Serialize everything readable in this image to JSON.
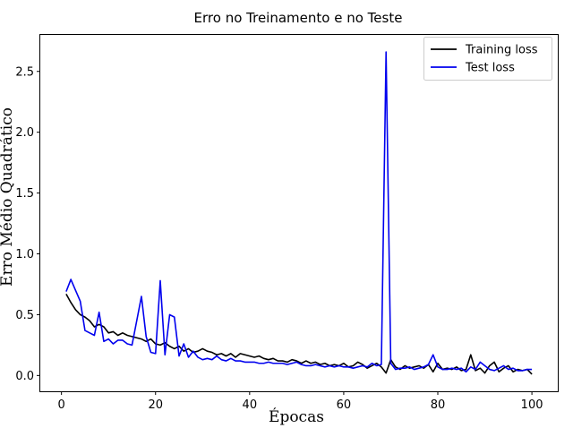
{
  "chart_data": {
    "type": "line",
    "title": "Erro no Treinamento e no Teste",
    "xlabel": "Épocas",
    "ylabel": "Erro Médio Quadrático",
    "xlim": [
      -4.5,
      105.5
    ],
    "ylim": [
      -0.13,
      2.8
    ],
    "xticks": [
      0,
      20,
      40,
      60,
      80,
      100
    ],
    "xtick_labels": [
      "0",
      "20",
      "40",
      "60",
      "80",
      "100"
    ],
    "yticks": [
      0.0,
      0.5,
      1.0,
      1.5,
      2.0,
      2.5
    ],
    "ytick_labels": [
      "0.0",
      "0.5",
      "1.0",
      "1.5",
      "2.0",
      "2.5"
    ],
    "legend_position": "top-right",
    "grid": false,
    "x": [
      1,
      2,
      3,
      4,
      5,
      6,
      7,
      8,
      9,
      10,
      11,
      12,
      13,
      14,
      15,
      16,
      17,
      18,
      19,
      20,
      21,
      22,
      23,
      24,
      25,
      26,
      27,
      28,
      29,
      30,
      31,
      32,
      33,
      34,
      35,
      36,
      37,
      38,
      39,
      40,
      41,
      42,
      43,
      44,
      45,
      46,
      47,
      48,
      49,
      50,
      51,
      52,
      53,
      54,
      55,
      56,
      57,
      58,
      59,
      60,
      61,
      62,
      63,
      64,
      65,
      66,
      67,
      68,
      69,
      70,
      71,
      72,
      73,
      74,
      75,
      76,
      77,
      78,
      79,
      80,
      81,
      82,
      83,
      84,
      85,
      86,
      87,
      88,
      89,
      90,
      91,
      92,
      93,
      94,
      95,
      96,
      97,
      98,
      99,
      100
    ],
    "series": [
      {
        "name": "Training loss",
        "color": "#000000",
        "values": [
          0.67,
          0.6,
          0.54,
          0.5,
          0.48,
          0.45,
          0.4,
          0.42,
          0.4,
          0.35,
          0.36,
          0.33,
          0.35,
          0.33,
          0.32,
          0.31,
          0.3,
          0.28,
          0.3,
          0.26,
          0.25,
          0.27,
          0.24,
          0.22,
          0.24,
          0.2,
          0.22,
          0.19,
          0.2,
          0.22,
          0.2,
          0.19,
          0.17,
          0.18,
          0.16,
          0.18,
          0.15,
          0.18,
          0.17,
          0.16,
          0.15,
          0.16,
          0.14,
          0.13,
          0.14,
          0.12,
          0.12,
          0.11,
          0.13,
          0.12,
          0.1,
          0.12,
          0.1,
          0.11,
          0.09,
          0.1,
          0.08,
          0.09,
          0.08,
          0.1,
          0.07,
          0.08,
          0.11,
          0.09,
          0.06,
          0.08,
          0.1,
          0.07,
          0.02,
          0.13,
          0.07,
          0.05,
          0.08,
          0.06,
          0.07,
          0.08,
          0.06,
          0.09,
          0.03,
          0.1,
          0.05,
          0.06,
          0.05,
          0.07,
          0.04,
          0.05,
          0.17,
          0.04,
          0.06,
          0.02,
          0.08,
          0.11,
          0.03,
          0.06,
          0.08,
          0.03,
          0.05,
          0.04,
          0.05,
          0.01
        ]
      },
      {
        "name": "Test loss",
        "color": "#0000ee",
        "values": [
          0.69,
          0.79,
          0.7,
          0.61,
          0.37,
          0.35,
          0.33,
          0.52,
          0.28,
          0.3,
          0.26,
          0.29,
          0.29,
          0.26,
          0.25,
          0.45,
          0.65,
          0.32,
          0.19,
          0.18,
          0.78,
          0.17,
          0.5,
          0.48,
          0.16,
          0.26,
          0.15,
          0.2,
          0.15,
          0.13,
          0.14,
          0.13,
          0.16,
          0.13,
          0.12,
          0.14,
          0.12,
          0.12,
          0.11,
          0.11,
          0.11,
          0.1,
          0.1,
          0.11,
          0.1,
          0.1,
          0.1,
          0.09,
          0.1,
          0.11,
          0.09,
          0.08,
          0.08,
          0.09,
          0.08,
          0.07,
          0.08,
          0.07,
          0.08,
          0.07,
          0.07,
          0.06,
          0.07,
          0.08,
          0.07,
          0.1,
          0.08,
          0.09,
          2.66,
          0.1,
          0.05,
          0.06,
          0.06,
          0.07,
          0.05,
          0.06,
          0.07,
          0.09,
          0.17,
          0.07,
          0.05,
          0.05,
          0.06,
          0.05,
          0.06,
          0.03,
          0.07,
          0.05,
          0.11,
          0.08,
          0.05,
          0.04,
          0.06,
          0.08,
          0.05,
          0.06,
          0.04,
          0.04,
          0.05,
          0.05
        ]
      }
    ]
  }
}
